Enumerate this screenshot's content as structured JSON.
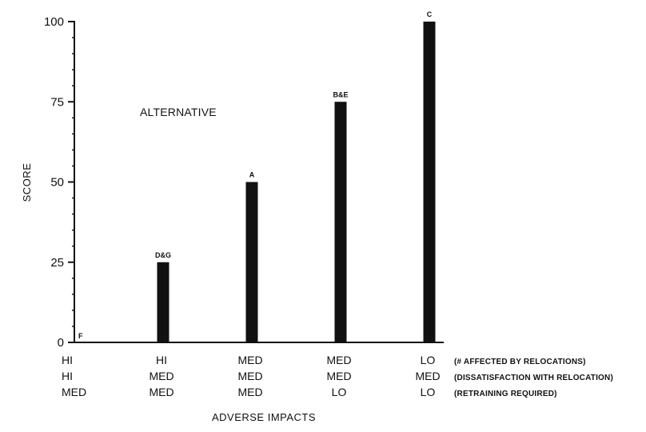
{
  "chart_data": {
    "type": "bar",
    "ylabel": "SCORE",
    "xlabel": "ADVERSE IMPACTS",
    "annotation": "ALTERNATIVE",
    "ylim": [
      0,
      100
    ],
    "y_ticks": [
      "0",
      "25",
      "50",
      "75",
      "100"
    ],
    "grid": false,
    "categories": [
      "F",
      "D&G",
      "A",
      "B&E",
      "C"
    ],
    "values": [
      0,
      25,
      50,
      75,
      100
    ],
    "bar_labels": [
      "F",
      "D&G",
      "A",
      "B&E",
      "C"
    ],
    "impact_rows": [
      {
        "description": "(# AFFECTED BY RELOCATIONS)",
        "levels": [
          "HI",
          "HI",
          "MED",
          "MED",
          "LO"
        ]
      },
      {
        "description": "(DISSATISFACTION WITH RELOCATION)",
        "levels": [
          "HI",
          "MED",
          "MED",
          "MED",
          "MED"
        ]
      },
      {
        "description": "(RETRAINING REQUIRED)",
        "levels": [
          "MED",
          "MED",
          "MED",
          "LO",
          "LO"
        ]
      }
    ],
    "colors": {
      "bar": "#111111",
      "axis": "#111111"
    }
  }
}
